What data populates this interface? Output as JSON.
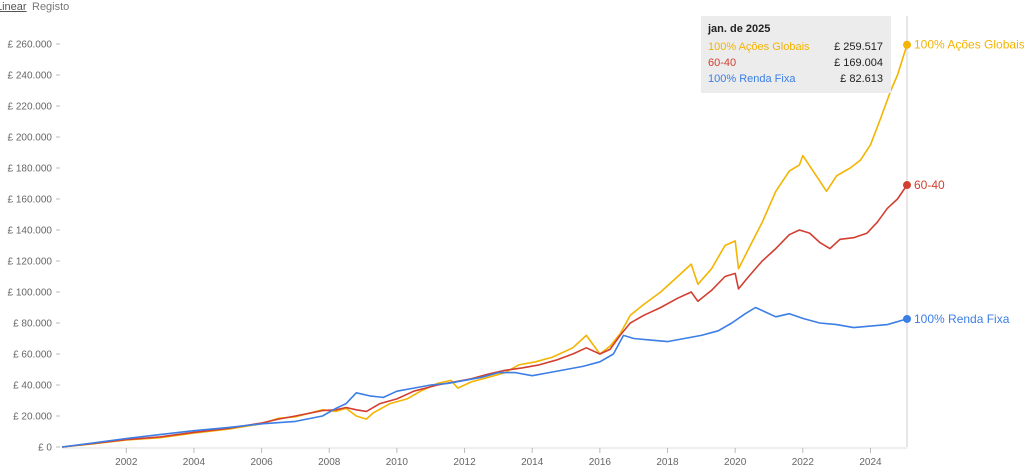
{
  "toggle": {
    "linear_label": "Linear",
    "log_label": "Registo"
  },
  "tooltip": {
    "date": "jan. de 2025",
    "rows": [
      {
        "name": "100% Ações Globais",
        "value": "£ 259.517",
        "color": "#f4b400"
      },
      {
        "name": "60-40",
        "value": "£ 169.004",
        "color": "#d23f31"
      },
      {
        "name": "100% Renda Fixa",
        "value": "£ 82.613",
        "color": "#3b7ee5"
      }
    ]
  },
  "chart_data": {
    "type": "line",
    "xlim": [
      2000.1,
      2025.08
    ],
    "ylim": [
      0,
      260000
    ],
    "x_ticks": [
      2002,
      2004,
      2006,
      2008,
      2010,
      2012,
      2014,
      2016,
      2018,
      2020,
      2022,
      2024
    ],
    "y_ticks": [
      0,
      20000,
      40000,
      60000,
      80000,
      100000,
      120000,
      140000,
      160000,
      180000,
      200000,
      220000,
      240000,
      260000
    ],
    "y_tick_labels": [
      "£ 0",
      "£ 20.000",
      "£ 40.000",
      "£ 60.000",
      "£ 80.000",
      "£ 100.000",
      "£ 120.000",
      "£ 140.000",
      "£ 160.000",
      "£ 180.000",
      "£ 200.000",
      "£ 220.000",
      "£ 240.000",
      "£ 260.000"
    ],
    "grid": false,
    "series": [
      {
        "name": "100% Ações Globais",
        "color": "#f4b400",
        "points": [
          [
            2000.1,
            0
          ],
          [
            2001,
            2000
          ],
          [
            2002,
            4500
          ],
          [
            2003,
            6000
          ],
          [
            2004,
            9000
          ],
          [
            2005,
            11500
          ],
          [
            2006,
            15000
          ],
          [
            2006.5,
            18500
          ],
          [
            2007,
            19500
          ],
          [
            2007.8,
            24000
          ],
          [
            2008.2,
            23000
          ],
          [
            2008.5,
            25000
          ],
          [
            2008.8,
            20000
          ],
          [
            2009.1,
            18000
          ],
          [
            2009.3,
            22000
          ],
          [
            2009.8,
            28000
          ],
          [
            2010.3,
            31000
          ],
          [
            2010.7,
            36000
          ],
          [
            2011.2,
            41000
          ],
          [
            2011.6,
            43000
          ],
          [
            2011.8,
            38000
          ],
          [
            2012.2,
            42000
          ],
          [
            2012.7,
            45000
          ],
          [
            2013.2,
            48000
          ],
          [
            2013.6,
            53000
          ],
          [
            2014.1,
            55000
          ],
          [
            2014.6,
            58000
          ],
          [
            2015.2,
            64000
          ],
          [
            2015.6,
            72000
          ],
          [
            2016.0,
            60000
          ],
          [
            2016.3,
            65000
          ],
          [
            2016.6,
            73000
          ],
          [
            2016.9,
            85000
          ],
          [
            2017.3,
            92000
          ],
          [
            2017.8,
            100000
          ],
          [
            2018.3,
            110000
          ],
          [
            2018.7,
            118000
          ],
          [
            2018.9,
            105000
          ],
          [
            2019.3,
            115000
          ],
          [
            2019.7,
            130000
          ],
          [
            2020.0,
            133000
          ],
          [
            2020.1,
            115000
          ],
          [
            2020.4,
            128000
          ],
          [
            2020.8,
            145000
          ],
          [
            2021.2,
            165000
          ],
          [
            2021.6,
            178000
          ],
          [
            2021.9,
            182000
          ],
          [
            2022.0,
            188000
          ],
          [
            2022.4,
            175000
          ],
          [
            2022.7,
            165000
          ],
          [
            2023.0,
            175000
          ],
          [
            2023.4,
            180000
          ],
          [
            2023.7,
            185000
          ],
          [
            2024.0,
            195000
          ],
          [
            2024.3,
            212000
          ],
          [
            2024.6,
            230000
          ],
          [
            2024.8,
            240000
          ],
          [
            2025.08,
            259517
          ]
        ]
      },
      {
        "name": "60-40",
        "color": "#d23f31",
        "points": [
          [
            2000.1,
            0
          ],
          [
            2001,
            2200
          ],
          [
            2002,
            4800
          ],
          [
            2003,
            6500
          ],
          [
            2004,
            9500
          ],
          [
            2005,
            12000
          ],
          [
            2006,
            15500
          ],
          [
            2006.5,
            18000
          ],
          [
            2007,
            20000
          ],
          [
            2007.8,
            23500
          ],
          [
            2008.2,
            24000
          ],
          [
            2008.5,
            25500
          ],
          [
            2008.8,
            24000
          ],
          [
            2009.1,
            23000
          ],
          [
            2009.5,
            28000
          ],
          [
            2010.0,
            31000
          ],
          [
            2010.5,
            36000
          ],
          [
            2011.2,
            40000
          ],
          [
            2011.7,
            42000
          ],
          [
            2012.2,
            44000
          ],
          [
            2012.7,
            47000
          ],
          [
            2013.2,
            49500
          ],
          [
            2013.7,
            51000
          ],
          [
            2014.2,
            53000
          ],
          [
            2014.7,
            56000
          ],
          [
            2015.2,
            60000
          ],
          [
            2015.6,
            64000
          ],
          [
            2016.0,
            60000
          ],
          [
            2016.3,
            63000
          ],
          [
            2016.6,
            72000
          ],
          [
            2016.9,
            80000
          ],
          [
            2017.3,
            85000
          ],
          [
            2017.8,
            90000
          ],
          [
            2018.3,
            96000
          ],
          [
            2018.7,
            100000
          ],
          [
            2018.9,
            94000
          ],
          [
            2019.3,
            101000
          ],
          [
            2019.7,
            110000
          ],
          [
            2020.0,
            112000
          ],
          [
            2020.1,
            102000
          ],
          [
            2020.4,
            110000
          ],
          [
            2020.8,
            120000
          ],
          [
            2021.2,
            128000
          ],
          [
            2021.6,
            137000
          ],
          [
            2021.9,
            140000
          ],
          [
            2022.2,
            138000
          ],
          [
            2022.5,
            132000
          ],
          [
            2022.8,
            128000
          ],
          [
            2023.1,
            134000
          ],
          [
            2023.5,
            135000
          ],
          [
            2023.9,
            138000
          ],
          [
            2024.2,
            145000
          ],
          [
            2024.5,
            154000
          ],
          [
            2024.8,
            160000
          ],
          [
            2025.08,
            169004
          ]
        ]
      },
      {
        "name": "100% Renda Fixa",
        "color": "#3b7ee5",
        "points": [
          [
            2000.1,
            0
          ],
          [
            2001,
            2500
          ],
          [
            2002,
            5500
          ],
          [
            2003,
            8000
          ],
          [
            2004,
            10500
          ],
          [
            2005,
            12500
          ],
          [
            2006,
            15000
          ],
          [
            2007,
            16500
          ],
          [
            2007.8,
            20000
          ],
          [
            2008.2,
            25000
          ],
          [
            2008.5,
            28000
          ],
          [
            2008.8,
            35000
          ],
          [
            2009.2,
            33000
          ],
          [
            2009.6,
            32000
          ],
          [
            2010.0,
            36000
          ],
          [
            2010.5,
            38000
          ],
          [
            2011.0,
            40000
          ],
          [
            2011.5,
            41000
          ],
          [
            2012.0,
            43000
          ],
          [
            2012.5,
            45000
          ],
          [
            2013.0,
            48000
          ],
          [
            2013.5,
            48000
          ],
          [
            2014.0,
            46000
          ],
          [
            2014.5,
            48000
          ],
          [
            2015.0,
            50000
          ],
          [
            2015.5,
            52000
          ],
          [
            2016.0,
            55000
          ],
          [
            2016.4,
            60000
          ],
          [
            2016.7,
            72000
          ],
          [
            2017.0,
            70000
          ],
          [
            2017.5,
            69000
          ],
          [
            2018.0,
            68000
          ],
          [
            2018.5,
            70000
          ],
          [
            2019.0,
            72000
          ],
          [
            2019.5,
            75000
          ],
          [
            2019.9,
            80000
          ],
          [
            2020.3,
            86000
          ],
          [
            2020.6,
            90000
          ],
          [
            2020.9,
            87000
          ],
          [
            2021.2,
            84000
          ],
          [
            2021.6,
            86000
          ],
          [
            2022.0,
            83000
          ],
          [
            2022.5,
            80000
          ],
          [
            2023.0,
            79000
          ],
          [
            2023.5,
            77000
          ],
          [
            2024.0,
            78000
          ],
          [
            2024.5,
            79000
          ],
          [
            2025.08,
            82613
          ]
        ]
      }
    ]
  }
}
